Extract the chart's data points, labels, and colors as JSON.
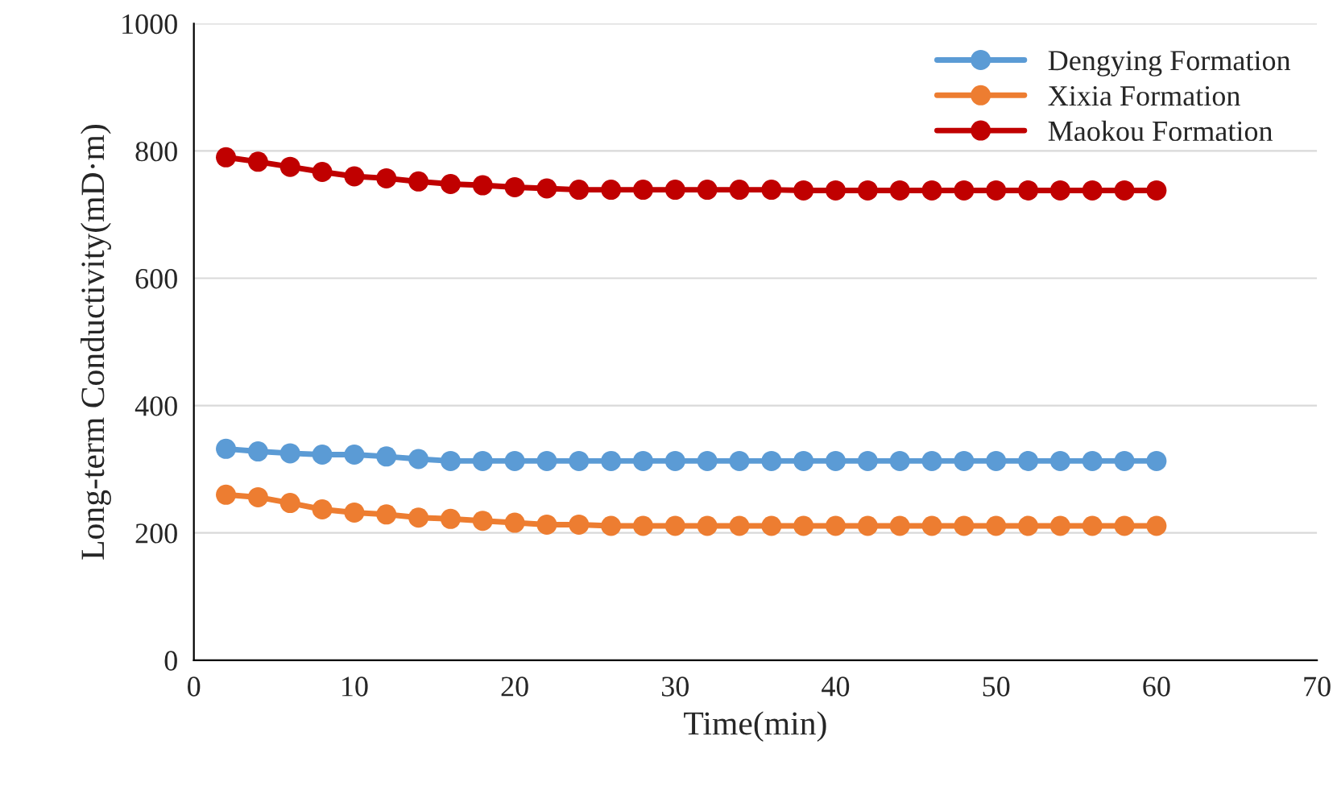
{
  "chart_data": {
    "type": "line",
    "xlabel": "Time(min)",
    "ylabel": "Long-term Conductivity(mD·m)",
    "x": [
      2,
      4,
      6,
      8,
      10,
      12,
      14,
      16,
      18,
      20,
      22,
      24,
      26,
      28,
      30,
      32,
      34,
      36,
      38,
      40,
      42,
      44,
      46,
      48,
      50,
      52,
      54,
      56,
      58,
      60
    ],
    "series": [
      {
        "name": "Dengying Formation",
        "color": "#5b9bd5",
        "values": [
          332,
          328,
          325,
          323,
          323,
          320,
          316,
          313,
          313,
          313,
          313,
          313,
          313,
          313,
          313,
          313,
          313,
          313,
          313,
          313,
          313,
          313,
          313,
          313,
          313,
          313,
          313,
          313,
          313,
          313
        ]
      },
      {
        "name": "Xixia Formation",
        "color": "#ed7d31",
        "values": [
          260,
          256,
          247,
          237,
          232,
          229,
          224,
          222,
          219,
          216,
          213,
          213,
          211,
          211,
          211,
          211,
          211,
          211,
          211,
          211,
          211,
          211,
          211,
          211,
          211,
          211,
          211,
          211,
          211,
          211
        ]
      },
      {
        "name": "Maokou Formation",
        "color": "#c00000",
        "values": [
          790,
          783,
          775,
          767,
          760,
          757,
          752,
          748,
          746,
          743,
          741,
          739,
          739,
          739,
          739,
          739,
          739,
          739,
          738,
          738,
          738,
          738,
          738,
          738,
          738,
          738,
          738,
          738,
          738,
          738
        ]
      }
    ],
    "xlim": [
      0,
      70
    ],
    "xticks": [
      0,
      10,
      20,
      30,
      40,
      50,
      60,
      70
    ],
    "ylim": [
      0,
      1000
    ],
    "yticks": [
      0,
      200,
      400,
      600,
      800,
      1000
    ],
    "grid": true,
    "legend": "top right",
    "marker": "circle",
    "line_style": "solid"
  }
}
